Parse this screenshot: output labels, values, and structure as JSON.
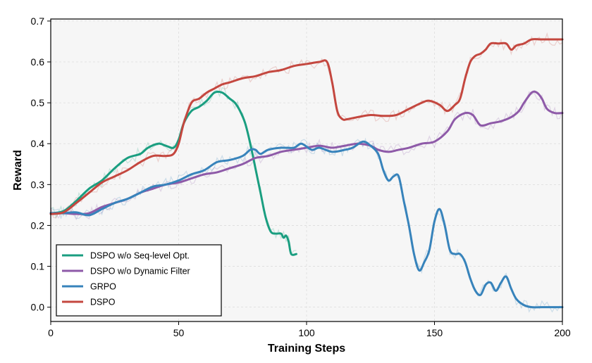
{
  "chart_data": {
    "type": "line",
    "title": "",
    "xlabel": "Training Steps",
    "ylabel": "Reward",
    "xlim": [
      0,
      200
    ],
    "ylim": [
      -0.035,
      0.705
    ],
    "xticks": [
      0,
      50,
      100,
      150,
      200
    ],
    "yticks": [
      0.0,
      0.1,
      0.2,
      0.3,
      0.4,
      0.5,
      0.6,
      0.7
    ],
    "ytick_labels": [
      "0.0",
      "0.1",
      "0.2",
      "0.3",
      "0.4",
      "0.5",
      "0.6",
      "0.7"
    ],
    "grid": true,
    "legend_position": "bottom-left",
    "series": [
      {
        "name": "DSPO w/o Seq-level Opt.",
        "color": "#1a9e80",
        "points": [
          [
            0,
            0.23
          ],
          [
            5,
            0.235
          ],
          [
            10,
            0.26
          ],
          [
            15,
            0.29
          ],
          [
            20,
            0.31
          ],
          [
            25,
            0.34
          ],
          [
            30,
            0.365
          ],
          [
            35,
            0.375
          ],
          [
            38,
            0.39
          ],
          [
            42,
            0.4
          ],
          [
            45,
            0.395
          ],
          [
            48,
            0.39
          ],
          [
            50,
            0.41
          ],
          [
            52,
            0.45
          ],
          [
            55,
            0.48
          ],
          [
            58,
            0.49
          ],
          [
            61,
            0.505
          ],
          [
            64,
            0.525
          ],
          [
            67,
            0.525
          ],
          [
            70,
            0.51
          ],
          [
            72,
            0.5
          ],
          [
            74,
            0.48
          ],
          [
            76,
            0.45
          ],
          [
            78,
            0.4
          ],
          [
            80,
            0.34
          ],
          [
            82,
            0.28
          ],
          [
            84,
            0.22
          ],
          [
            86,
            0.185
          ],
          [
            88,
            0.18
          ],
          [
            90,
            0.18
          ],
          [
            91,
            0.17
          ],
          [
            92,
            0.175
          ],
          [
            93,
            0.16
          ],
          [
            94,
            0.13
          ],
          [
            96,
            0.13
          ]
        ]
      },
      {
        "name": "DSPO w/o Dynamic Filter",
        "color": "#8e5aa8",
        "points": [
          [
            0,
            0.23
          ],
          [
            5,
            0.23
          ],
          [
            10,
            0.228
          ],
          [
            15,
            0.23
          ],
          [
            20,
            0.245
          ],
          [
            25,
            0.255
          ],
          [
            30,
            0.265
          ],
          [
            35,
            0.28
          ],
          [
            40,
            0.29
          ],
          [
            45,
            0.3
          ],
          [
            50,
            0.305
          ],
          [
            55,
            0.315
          ],
          [
            60,
            0.325
          ],
          [
            65,
            0.33
          ],
          [
            70,
            0.34
          ],
          [
            75,
            0.35
          ],
          [
            80,
            0.365
          ],
          [
            85,
            0.37
          ],
          [
            90,
            0.38
          ],
          [
            95,
            0.385
          ],
          [
            100,
            0.39
          ],
          [
            105,
            0.395
          ],
          [
            110,
            0.39
          ],
          [
            115,
            0.395
          ],
          [
            120,
            0.4
          ],
          [
            125,
            0.395
          ],
          [
            128,
            0.385
          ],
          [
            132,
            0.38
          ],
          [
            136,
            0.385
          ],
          [
            140,
            0.39
          ],
          [
            145,
            0.4
          ],
          [
            150,
            0.405
          ],
          [
            155,
            0.43
          ],
          [
            158,
            0.46
          ],
          [
            162,
            0.475
          ],
          [
            165,
            0.47
          ],
          [
            168,
            0.445
          ],
          [
            172,
            0.45
          ],
          [
            176,
            0.455
          ],
          [
            180,
            0.465
          ],
          [
            183,
            0.48
          ],
          [
            185,
            0.5
          ],
          [
            188,
            0.525
          ],
          [
            190,
            0.525
          ],
          [
            192,
            0.51
          ],
          [
            194,
            0.485
          ],
          [
            197,
            0.475
          ],
          [
            200,
            0.475
          ]
        ]
      },
      {
        "name": "GRPO",
        "color": "#3783bb",
        "points": [
          [
            0,
            0.23
          ],
          [
            5,
            0.23
          ],
          [
            10,
            0.232
          ],
          [
            15,
            0.225
          ],
          [
            20,
            0.24
          ],
          [
            25,
            0.255
          ],
          [
            30,
            0.265
          ],
          [
            35,
            0.28
          ],
          [
            40,
            0.295
          ],
          [
            45,
            0.3
          ],
          [
            50,
            0.31
          ],
          [
            55,
            0.325
          ],
          [
            60,
            0.335
          ],
          [
            65,
            0.355
          ],
          [
            70,
            0.36
          ],
          [
            75,
            0.37
          ],
          [
            78,
            0.385
          ],
          [
            80,
            0.385
          ],
          [
            82,
            0.375
          ],
          [
            85,
            0.385
          ],
          [
            90,
            0.39
          ],
          [
            95,
            0.39
          ],
          [
            98,
            0.4
          ],
          [
            102,
            0.385
          ],
          [
            105,
            0.39
          ],
          [
            110,
            0.38
          ],
          [
            115,
            0.385
          ],
          [
            118,
            0.39
          ],
          [
            122,
            0.405
          ],
          [
            125,
            0.395
          ],
          [
            128,
            0.375
          ],
          [
            130,
            0.335
          ],
          [
            132,
            0.31
          ],
          [
            134,
            0.32
          ],
          [
            136,
            0.32
          ],
          [
            138,
            0.26
          ],
          [
            140,
            0.2
          ],
          [
            142,
            0.13
          ],
          [
            144,
            0.09
          ],
          [
            146,
            0.11
          ],
          [
            148,
            0.14
          ],
          [
            150,
            0.21
          ],
          [
            152,
            0.24
          ],
          [
            154,
            0.2
          ],
          [
            156,
            0.14
          ],
          [
            158,
            0.13
          ],
          [
            160,
            0.13
          ],
          [
            162,
            0.11
          ],
          [
            164,
            0.07
          ],
          [
            166,
            0.04
          ],
          [
            168,
            0.03
          ],
          [
            170,
            0.055
          ],
          [
            172,
            0.06
          ],
          [
            174,
            0.04
          ],
          [
            176,
            0.06
          ],
          [
            178,
            0.075
          ],
          [
            180,
            0.045
          ],
          [
            182,
            0.02
          ],
          [
            185,
            0.005
          ],
          [
            188,
            0.0
          ],
          [
            192,
            0.0
          ],
          [
            196,
            0.0
          ],
          [
            200,
            0.0
          ]
        ]
      },
      {
        "name": "DSPO",
        "color": "#c4473f",
        "points": [
          [
            0,
            0.228
          ],
          [
            5,
            0.232
          ],
          [
            10,
            0.255
          ],
          [
            15,
            0.28
          ],
          [
            20,
            0.305
          ],
          [
            25,
            0.32
          ],
          [
            30,
            0.335
          ],
          [
            35,
            0.355
          ],
          [
            40,
            0.37
          ],
          [
            45,
            0.37
          ],
          [
            48,
            0.375
          ],
          [
            50,
            0.4
          ],
          [
            52,
            0.45
          ],
          [
            55,
            0.5
          ],
          [
            58,
            0.51
          ],
          [
            61,
            0.525
          ],
          [
            64,
            0.535
          ],
          [
            67,
            0.545
          ],
          [
            70,
            0.55
          ],
          [
            75,
            0.56
          ],
          [
            80,
            0.565
          ],
          [
            85,
            0.575
          ],
          [
            90,
            0.58
          ],
          [
            95,
            0.59
          ],
          [
            100,
            0.595
          ],
          [
            105,
            0.6
          ],
          [
            108,
            0.6
          ],
          [
            110,
            0.55
          ],
          [
            112,
            0.48
          ],
          [
            114,
            0.46
          ],
          [
            116,
            0.46
          ],
          [
            120,
            0.465
          ],
          [
            125,
            0.47
          ],
          [
            130,
            0.468
          ],
          [
            135,
            0.47
          ],
          [
            140,
            0.485
          ],
          [
            145,
            0.5
          ],
          [
            148,
            0.505
          ],
          [
            152,
            0.495
          ],
          [
            155,
            0.48
          ],
          [
            158,
            0.495
          ],
          [
            160,
            0.51
          ],
          [
            162,
            0.56
          ],
          [
            164,
            0.6
          ],
          [
            166,
            0.615
          ],
          [
            168,
            0.62
          ],
          [
            170,
            0.63
          ],
          [
            172,
            0.645
          ],
          [
            175,
            0.645
          ],
          [
            178,
            0.645
          ],
          [
            180,
            0.63
          ],
          [
            182,
            0.64
          ],
          [
            185,
            0.645
          ],
          [
            188,
            0.655
          ],
          [
            192,
            0.655
          ],
          [
            196,
            0.655
          ],
          [
            200,
            0.655
          ]
        ]
      }
    ]
  }
}
